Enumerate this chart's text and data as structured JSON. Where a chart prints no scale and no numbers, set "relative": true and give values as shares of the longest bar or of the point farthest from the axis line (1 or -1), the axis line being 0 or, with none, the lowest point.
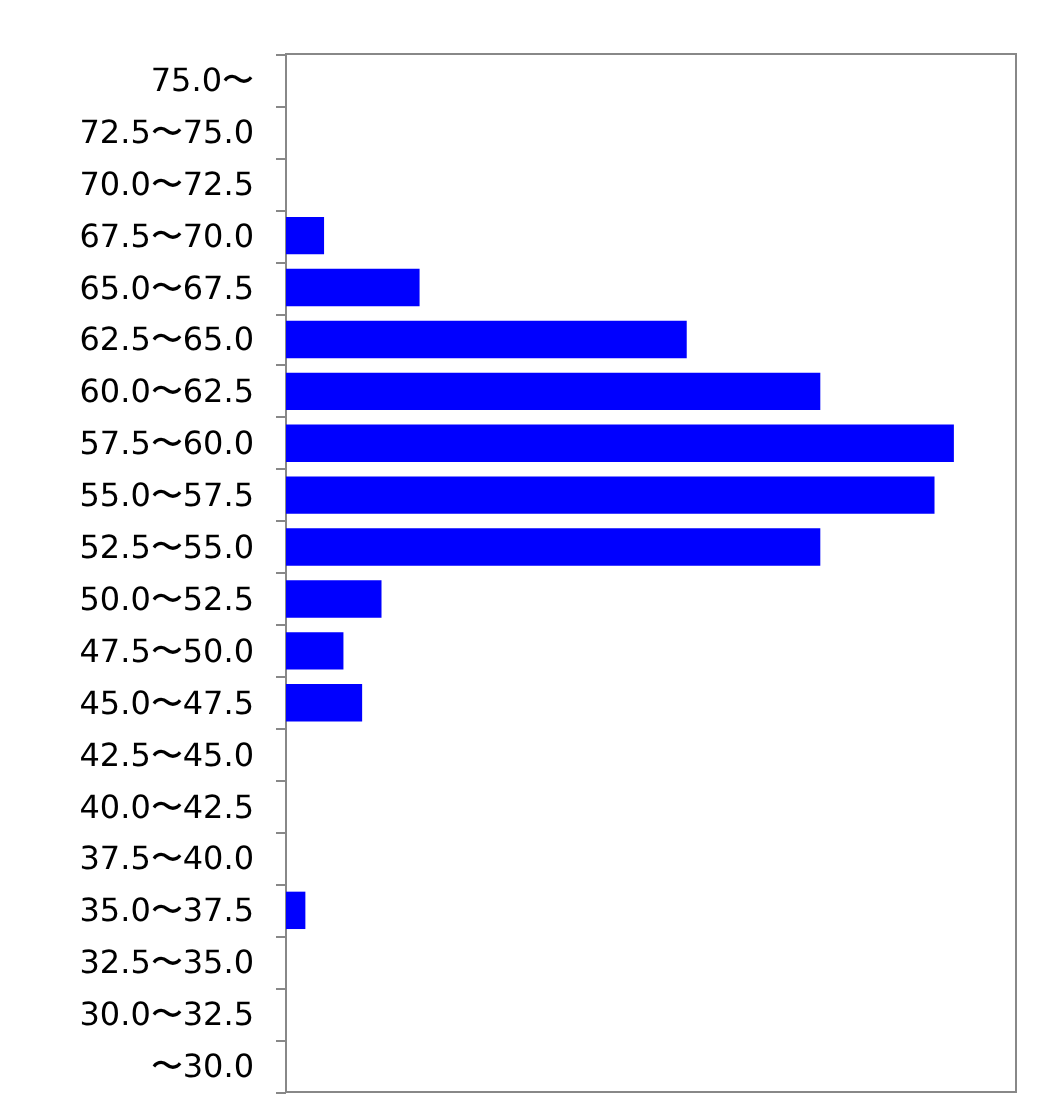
{
  "chart_data": {
    "type": "bar",
    "orientation": "horizontal",
    "relative": true,
    "categories": [
      "75.0〜",
      "72.5〜75.0",
      "70.0〜72.5",
      "67.5〜70.0",
      "65.0〜67.5",
      "62.5〜65.0",
      "60.0〜62.5",
      "57.5〜60.0",
      "55.0〜57.5",
      "52.5〜55.0",
      "50.0〜52.5",
      "47.5〜50.0",
      "45.0〜47.5",
      "42.5〜45.0",
      "40.0〜42.5",
      "37.5〜40.0",
      "35.0〜37.5",
      "32.5〜35.0",
      "30.0〜32.5",
      "〜30.0"
    ],
    "values": [
      0,
      0,
      0,
      0.057,
      0.2,
      0.6,
      0.8,
      1,
      0.971,
      0.8,
      0.143,
      0.086,
      0.114,
      0,
      0,
      0,
      0.029,
      0,
      0,
      0
    ],
    "color": "#0000ff"
  }
}
